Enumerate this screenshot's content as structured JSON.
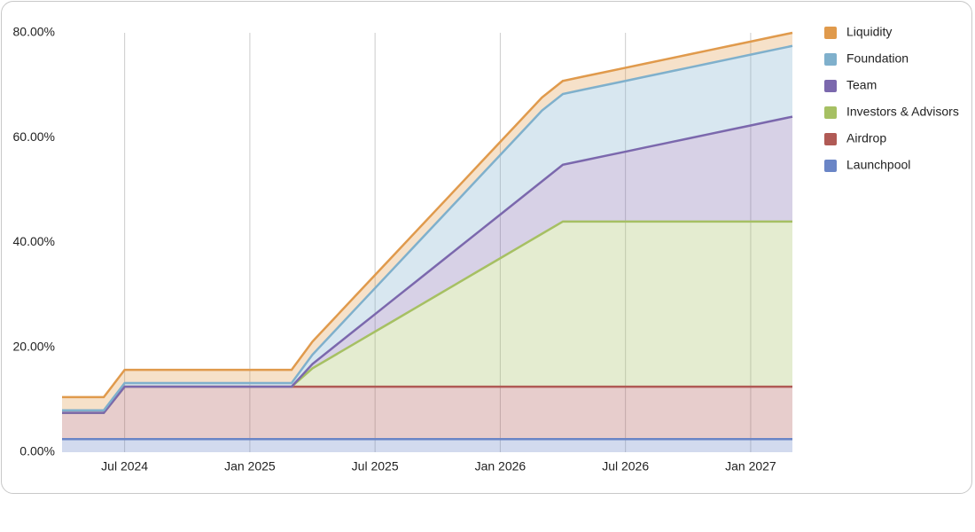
{
  "chart_data": {
    "type": "stacked_area",
    "x": [
      "2024-04",
      "2024-05",
      "2024-06",
      "2024-07",
      "2024-08",
      "2024-09",
      "2024-10",
      "2024-11",
      "2024-12",
      "2025-01",
      "2025-02",
      "2025-03",
      "2025-04",
      "2025-05",
      "2025-06",
      "2025-07",
      "2025-08",
      "2025-09",
      "2025-10",
      "2025-11",
      "2025-12",
      "2026-01",
      "2026-02",
      "2026-03",
      "2026-04",
      "2026-05",
      "2026-06",
      "2026-07",
      "2026-08",
      "2026-09",
      "2026-10",
      "2026-11",
      "2026-12",
      "2027-01",
      "2027-02",
      "2027-03"
    ],
    "series": [
      {
        "name": "Launchpool",
        "color": "#6a85c6",
        "values": [
          2.5,
          2.5,
          2.5,
          2.5,
          2.5,
          2.5,
          2.5,
          2.5,
          2.5,
          2.5,
          2.5,
          2.5,
          2.5,
          2.5,
          2.5,
          2.5,
          2.5,
          2.5,
          2.5,
          2.5,
          2.5,
          2.5,
          2.5,
          2.5,
          2.5,
          2.5,
          2.5,
          2.5,
          2.5,
          2.5,
          2.5,
          2.5,
          2.5,
          2.5,
          2.5,
          2.5
        ]
      },
      {
        "name": "Airdrop",
        "color": "#b05a55",
        "values": [
          5,
          5,
          5,
          10,
          10,
          10,
          10,
          10,
          10,
          10,
          10,
          10,
          10,
          10,
          10,
          10,
          10,
          10,
          10,
          10,
          10,
          10,
          10,
          10,
          10,
          10,
          10,
          10,
          10,
          10,
          10,
          10,
          10,
          10,
          10,
          10
        ]
      },
      {
        "name": "Investors & Advisors",
        "color": "#a6c063",
        "values": [
          0,
          0,
          0,
          0,
          0,
          0,
          0,
          0,
          0,
          0,
          0,
          0,
          3.5,
          5.83,
          8.17,
          10.5,
          12.83,
          15.17,
          17.5,
          19.83,
          22.17,
          24.5,
          26.83,
          29.17,
          31.5,
          31.5,
          31.5,
          31.5,
          31.5,
          31.5,
          31.5,
          31.5,
          31.5,
          31.5,
          31.5,
          31.5
        ]
      },
      {
        "name": "Team",
        "color": "#7b68ad",
        "values": [
          0,
          0,
          0,
          0,
          0,
          0,
          0,
          0,
          0,
          0,
          0,
          0,
          0.83,
          1.67,
          2.5,
          3.33,
          4.17,
          5,
          5.83,
          6.67,
          7.5,
          8.33,
          9.17,
          10,
          10.83,
          11.67,
          12.5,
          13.33,
          14.17,
          15,
          15.83,
          16.67,
          17.5,
          18.33,
          19.17,
          20
        ]
      },
      {
        "name": "Foundation",
        "color": "#7fb0cc",
        "values": [
          0.5,
          0.5,
          0.5,
          0.7,
          0.7,
          0.7,
          0.7,
          0.7,
          0.7,
          0.7,
          0.7,
          0.7,
          1.77,
          2.83,
          3.9,
          4.97,
          6.03,
          7.1,
          8.17,
          9.23,
          10.3,
          11.37,
          12.43,
          13.5,
          13.5,
          13.5,
          13.5,
          13.5,
          13.5,
          13.5,
          13.5,
          13.5,
          13.5,
          13.5,
          13.5,
          13.5
        ]
      },
      {
        "name": "Liquidity",
        "color": "#e09a4c",
        "values": [
          2.5,
          2.5,
          2.5,
          2.5,
          2.5,
          2.5,
          2.5,
          2.5,
          2.5,
          2.5,
          2.5,
          2.5,
          2.5,
          2.5,
          2.5,
          2.5,
          2.5,
          2.5,
          2.5,
          2.5,
          2.5,
          2.5,
          2.5,
          2.5,
          2.5,
          2.5,
          2.5,
          2.5,
          2.5,
          2.5,
          2.5,
          2.5,
          2.5,
          2.5,
          2.5,
          2.5
        ]
      }
    ],
    "xlim": [
      "2024-04",
      "2027-03"
    ],
    "xticks": [
      {
        "value": "2024-07",
        "label": "Jul 2024"
      },
      {
        "value": "2025-01",
        "label": "Jan 2025"
      },
      {
        "value": "2025-07",
        "label": "Jul 2025"
      },
      {
        "value": "2026-01",
        "label": "Jan 2026"
      },
      {
        "value": "2026-07",
        "label": "Jul 2026"
      },
      {
        "value": "2027-01",
        "label": "Jan 2027"
      }
    ],
    "ylim": [
      0,
      80
    ],
    "yticks": [
      {
        "value": 0,
        "label": "0.00%"
      },
      {
        "value": 20,
        "label": "20.00%"
      },
      {
        "value": 40,
        "label": "40.00%"
      },
      {
        "value": 60,
        "label": "60.00%"
      },
      {
        "value": 80,
        "label": "80.00%"
      }
    ],
    "grid": true,
    "legend": "right"
  }
}
